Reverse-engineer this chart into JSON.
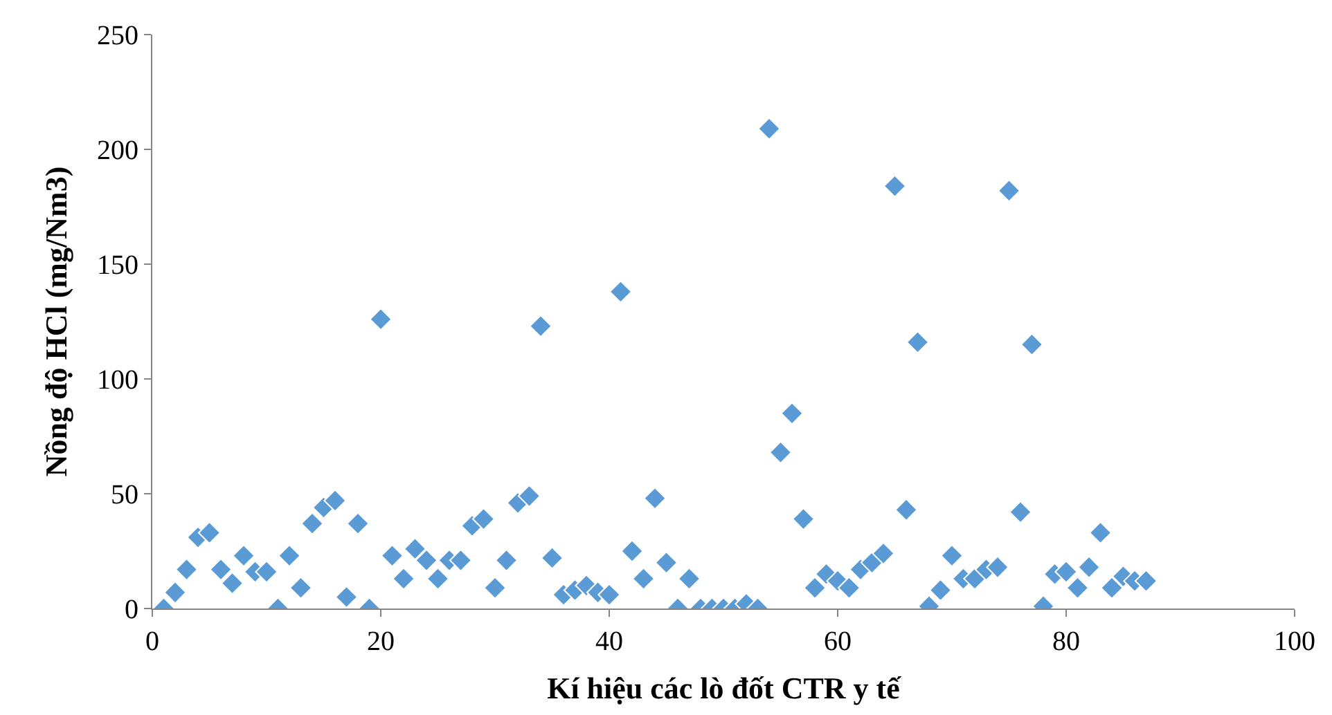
{
  "chart_data": {
    "type": "scatter",
    "xlabel": "Kí hiệu các lò đốt CTR y tế",
    "ylabel": "Nồng độ HCl (mg/Nm3)",
    "x": [
      1,
      2,
      3,
      4,
      5,
      6,
      7,
      8,
      9,
      10,
      11,
      12,
      13,
      14,
      15,
      16,
      17,
      18,
      19,
      20,
      21,
      22,
      23,
      24,
      25,
      26,
      27,
      28,
      29,
      30,
      31,
      32,
      33,
      34,
      35,
      36,
      37,
      38,
      39,
      40,
      41,
      42,
      43,
      44,
      45,
      46,
      47,
      48,
      49,
      50,
      51,
      52,
      53,
      54,
      55,
      56,
      57,
      58,
      59,
      60,
      61,
      62,
      63,
      64,
      65,
      66,
      67,
      68,
      69,
      70,
      71,
      72,
      73,
      74,
      75,
      76,
      77,
      78,
      79,
      80,
      81,
      82,
      83,
      84,
      85,
      86,
      87
    ],
    "series": [
      {
        "color": "#5b9bd5",
        "values": [
          0,
          7,
          17,
          31,
          33,
          17,
          11,
          23,
          16,
          16,
          0,
          23,
          9,
          37,
          44,
          47,
          5,
          37,
          0,
          126,
          23,
          13,
          26,
          21,
          13,
          21,
          21,
          36,
          39,
          9,
          21,
          46,
          49,
          123,
          22,
          6,
          8,
          10,
          7,
          6,
          138,
          25,
          13,
          48,
          20,
          0,
          13,
          0,
          0,
          0,
          0,
          2,
          0,
          209,
          68,
          85,
          39,
          9,
          15,
          12,
          9,
          17,
          20,
          24,
          184,
          43,
          116,
          1,
          8,
          23,
          13,
          13,
          17,
          18,
          182,
          42,
          115,
          1,
          15,
          16,
          9,
          18,
          33,
          9,
          14,
          12,
          12
        ]
      }
    ],
    "xlim": [
      0,
      100
    ],
    "xticks": [
      0,
      20,
      40,
      60,
      80,
      100
    ],
    "ylim": [
      0,
      250
    ],
    "yticks": [
      0,
      50,
      100,
      150,
      200,
      250
    ],
    "marker": "diamond"
  }
}
